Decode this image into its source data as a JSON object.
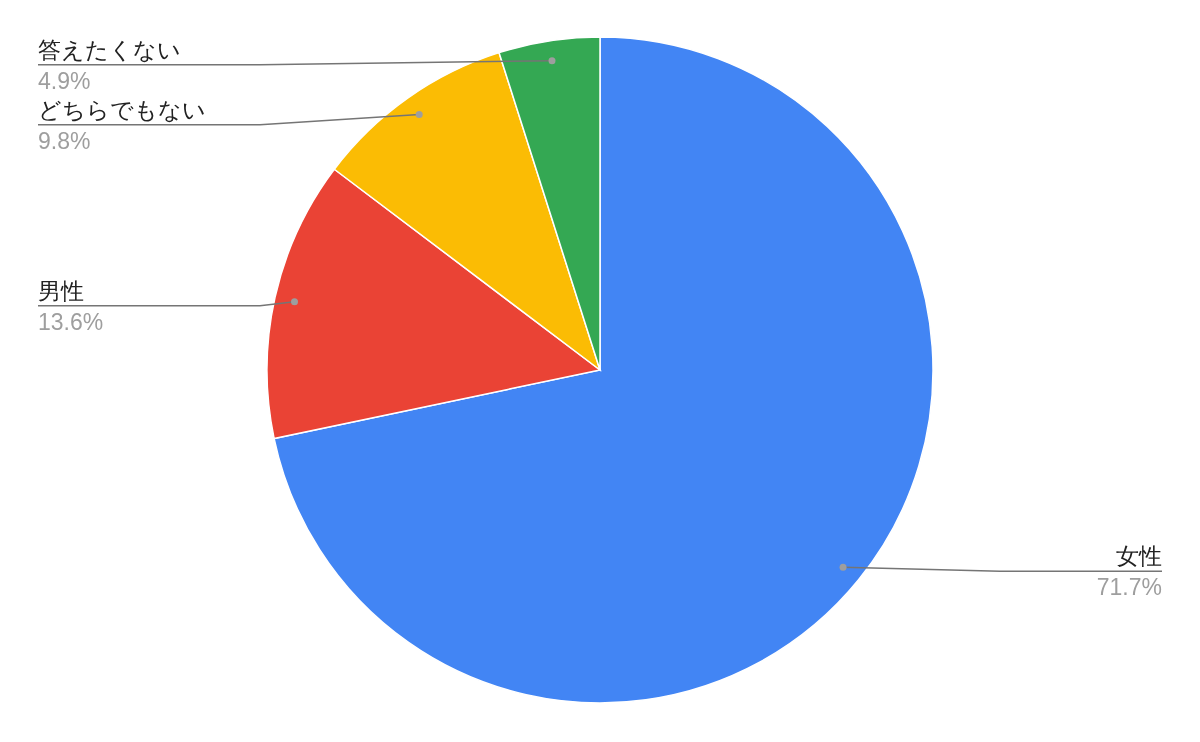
{
  "chart_data": {
    "type": "pie",
    "categories": [
      "女性",
      "男性",
      "どちらでもない",
      "答えたくない"
    ],
    "values": [
      71.7,
      13.6,
      9.8,
      4.9
    ],
    "colors": [
      "#4285f4",
      "#ea4335",
      "#fbbc04",
      "#34a853"
    ],
    "value_labels": [
      "71.7%",
      "13.6%",
      "9.8%",
      "4.9%"
    ]
  }
}
